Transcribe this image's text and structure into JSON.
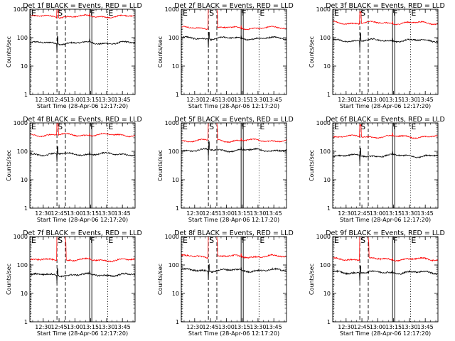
{
  "chart_data": {
    "type": "line",
    "ylim": [
      1,
      1000
    ],
    "yscale": "log",
    "xlim": [
      "12:17:20",
      "13:57:00"
    ],
    "grid": false,
    "x_ticks": [
      "12:30",
      "12:45",
      "13:00",
      "13:15",
      "13:30",
      "13:45"
    ],
    "y_ticks": [
      "1",
      "10",
      "100",
      "1000"
    ],
    "xlabel": "Start Time (28-Apr-06 12:17:20)",
    "ylabel": "Counts/sec",
    "colors": {
      "events": "#000000",
      "lld": "#ff0000",
      "markers": "#000000"
    },
    "markers": [
      {
        "label": "E",
        "time": "12:18",
        "style": "dotted"
      },
      {
        "label": "S",
        "time": "12:43",
        "style": "dashed"
      },
      {
        "label": "",
        "time": "12:51",
        "style": "dashed"
      },
      {
        "label": "F",
        "time": "13:14",
        "style": "solid"
      },
      {
        "label": "E",
        "time": "13:31",
        "style": "dotted"
      }
    ],
    "panels": [
      {
        "title": "Det 1f BLACK = Events, RED = LLD",
        "series": [
          {
            "name": "Events",
            "color": "#000000",
            "baseline": 65,
            "spike": 0,
            "noise": 0.05
          },
          {
            "name": "LLD",
            "color": "#ff0000",
            "baseline": 560,
            "spike": 0,
            "noise": 0.04
          }
        ]
      },
      {
        "title": "Det 2f BLACK = Events, RED = LLD",
        "series": [
          {
            "name": "Events",
            "color": "#000000",
            "baseline": 95,
            "spike": 0,
            "noise": 0.05
          },
          {
            "name": "LLD",
            "color": "#ff0000",
            "baseline": 220,
            "spike": 6000,
            "noise": 0.04
          }
        ]
      },
      {
        "title": "Det 3f BLACK = Events, RED = LLD",
        "series": [
          {
            "name": "Events",
            "color": "#000000",
            "baseline": 80,
            "spike": 0,
            "noise": 0.05
          },
          {
            "name": "LLD",
            "color": "#ff0000",
            "baseline": 330,
            "spike": 0,
            "noise": 0.04
          }
        ]
      },
      {
        "title": "Det 4f BLACK = Events, RED = LLD",
        "series": [
          {
            "name": "Events",
            "color": "#000000",
            "baseline": 80,
            "spike": 0,
            "noise": 0.05
          },
          {
            "name": "LLD",
            "color": "#ff0000",
            "baseline": 380,
            "spike": 0,
            "noise": 0.04
          }
        ]
      },
      {
        "title": "Det 5f BLACK = Events, RED = LLD",
        "series": [
          {
            "name": "Events",
            "color": "#000000",
            "baseline": 110,
            "spike": 0,
            "noise": 0.05
          },
          {
            "name": "LLD",
            "color": "#ff0000",
            "baseline": 240,
            "spike": 5000,
            "noise": 0.04
          }
        ]
      },
      {
        "title": "Det 6f BLACK = Events, RED = LLD",
        "series": [
          {
            "name": "Events",
            "color": "#000000",
            "baseline": 70,
            "spike": 0,
            "noise": 0.05
          },
          {
            "name": "LLD",
            "color": "#ff0000",
            "baseline": 330,
            "spike": 0,
            "noise": 0.04
          }
        ]
      },
      {
        "title": "Det 7f BLACK = Events, RED = LLD",
        "series": [
          {
            "name": "Events",
            "color": "#000000",
            "baseline": 45,
            "spike": 0,
            "noise": 0.06
          },
          {
            "name": "LLD",
            "color": "#ff0000",
            "baseline": 150,
            "spike": 5000,
            "noise": 0.05
          }
        ]
      },
      {
        "title": "Det 8f BLACK = Events, RED = LLD",
        "series": [
          {
            "name": "Events",
            "color": "#000000",
            "baseline": 65,
            "spike": 0,
            "noise": 0.06
          },
          {
            "name": "LLD",
            "color": "#ff0000",
            "baseline": 200,
            "spike": 5000,
            "noise": 0.05
          }
        ]
      },
      {
        "title": "Det 9f BLACK = Events, RED = LLD",
        "series": [
          {
            "name": "Events",
            "color": "#000000",
            "baseline": 55,
            "spike": 0,
            "noise": 0.06
          },
          {
            "name": "LLD",
            "color": "#ff0000",
            "baseline": 160,
            "spike": 5000,
            "noise": 0.05
          }
        ]
      }
    ]
  }
}
